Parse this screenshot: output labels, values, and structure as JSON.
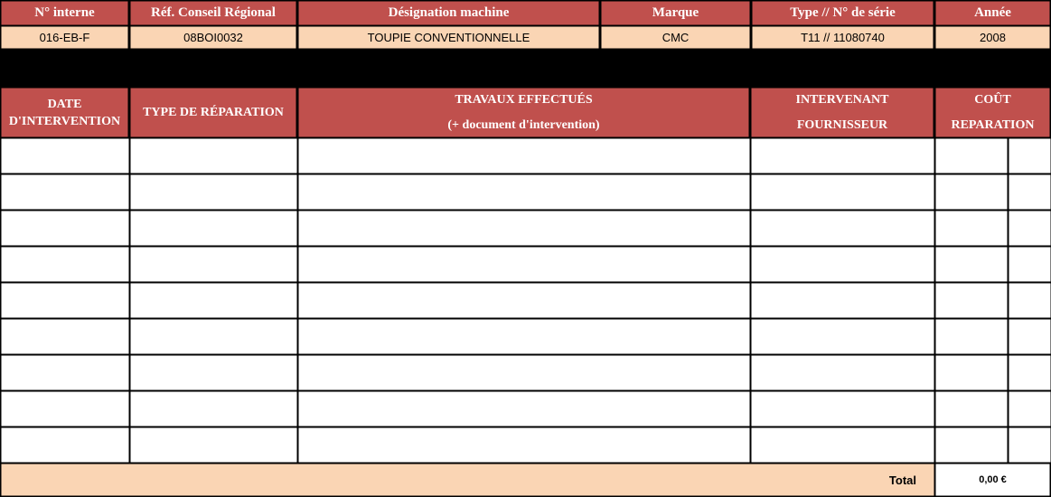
{
  "machine_header": {
    "columns": [
      "N° interne",
      "Réf. Conseil Régional",
      "Désignation machine",
      "Marque",
      "Type  //  N° de série",
      "Année"
    ],
    "values": [
      "016-EB-F",
      "08BOI0032",
      "TOUPIE CONVENTIONNELLE",
      "CMC",
      "T11 // 11080740",
      "2008"
    ]
  },
  "repairs": {
    "columns": [
      {
        "line1": "DATE",
        "line2": "D'INTERVENTION"
      },
      {
        "line1": "TYPE DE RÉPARATION",
        "line2": ""
      },
      {
        "line1": "TRAVAUX EFFECTUÉS",
        "line2": "(+ document d'intervention)"
      },
      {
        "line1": "INTERVENANT",
        "line2": "FOURNISSEUR"
      },
      {
        "line1": "COÛT",
        "line2": "REPARATION"
      }
    ],
    "empty_rows": 9,
    "total_label": "Total",
    "total_value": "0,00 €"
  }
}
